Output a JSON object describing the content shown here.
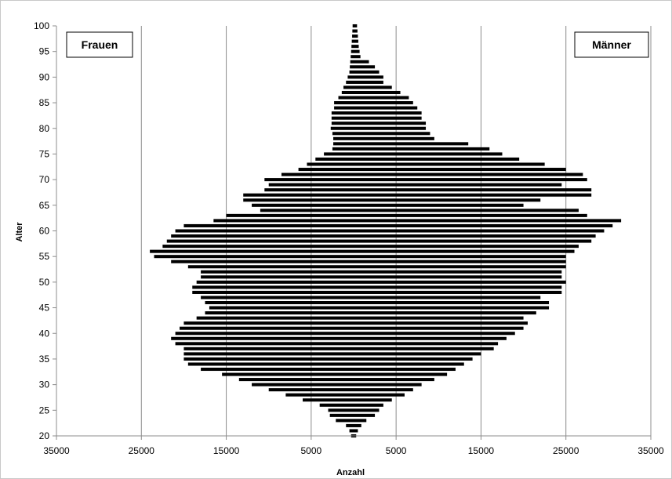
{
  "chart_data": {
    "type": "bar",
    "orientation": "horizontal",
    "xlabel": "Anzahl",
    "ylabel": "Alter",
    "x_ticks": [
      "35000",
      "25000",
      "15000",
      "5000",
      "5000",
      "15000",
      "25000",
      "35000"
    ],
    "y_ticks": [
      "20",
      "25",
      "30",
      "35",
      "40",
      "45",
      "50",
      "55",
      "60",
      "65",
      "70",
      "75",
      "80",
      "85",
      "90",
      "95",
      "100"
    ],
    "xlim": [
      -35000,
      35000
    ],
    "ylim": [
      20,
      100
    ],
    "grid": "vertical",
    "legend_left": "Frauen",
    "legend_right": "Männer",
    "bar_color": "#000000",
    "ages": [
      20,
      21,
      22,
      23,
      24,
      25,
      26,
      27,
      28,
      29,
      30,
      31,
      32,
      33,
      34,
      35,
      36,
      37,
      38,
      39,
      40,
      41,
      42,
      43,
      44,
      45,
      46,
      47,
      48,
      49,
      50,
      51,
      52,
      53,
      54,
      55,
      56,
      57,
      58,
      59,
      60,
      61,
      62,
      63,
      64,
      65,
      66,
      67,
      68,
      69,
      70,
      71,
      72,
      73,
      74,
      75,
      76,
      77,
      78,
      79,
      80,
      81,
      82,
      83,
      84,
      85,
      86,
      87,
      88,
      89,
      90,
      91,
      92,
      93,
      94,
      95,
      96,
      97,
      98,
      99,
      100
    ],
    "series": [
      {
        "name": "Frauen",
        "values": [
          300,
          500,
          900,
          2100,
          2800,
          3000,
          4000,
          6000,
          8000,
          10000,
          12000,
          13500,
          15500,
          18000,
          19500,
          20000,
          20000,
          20000,
          21000,
          21500,
          21000,
          20500,
          20000,
          18500,
          17500,
          17000,
          17500,
          18000,
          19000,
          19000,
          18500,
          18000,
          18000,
          19500,
          21500,
          23500,
          24000,
          22500,
          22000,
          21500,
          21000,
          20000,
          16500,
          15000,
          11000,
          12000,
          13000,
          13000,
          10500,
          10000,
          10500,
          8500,
          6500,
          5500,
          4500,
          3500,
          2500,
          2400,
          2400,
          2500,
          2700,
          2600,
          2600,
          2600,
          2300,
          2300,
          1800,
          1400,
          1200,
          900,
          700,
          500,
          450,
          400,
          350,
          300,
          260,
          220,
          180,
          150,
          120
        ]
      },
      {
        "name": "Männer",
        "values": [
          300,
          500,
          900,
          1500,
          2500,
          3000,
          3500,
          4500,
          6000,
          7000,
          8000,
          9500,
          11000,
          12000,
          13000,
          14000,
          15000,
          16500,
          17000,
          18000,
          19000,
          20000,
          20500,
          20000,
          21500,
          23000,
          23000,
          22000,
          24500,
          24500,
          25000,
          24500,
          24500,
          25000,
          25000,
          25000,
          26000,
          26500,
          28000,
          28500,
          29500,
          30500,
          31500,
          27500,
          26500,
          20000,
          22000,
          28000,
          28000,
          24500,
          27500,
          27000,
          25000,
          22500,
          19500,
          17500,
          16000,
          13500,
          9500,
          9000,
          8500,
          8500,
          8000,
          8000,
          7500,
          7000,
          6500,
          5500,
          4500,
          3500,
          3500,
          3000,
          2500,
          1800,
          800,
          700,
          600,
          550,
          500,
          450,
          400
        ]
      }
    ]
  }
}
